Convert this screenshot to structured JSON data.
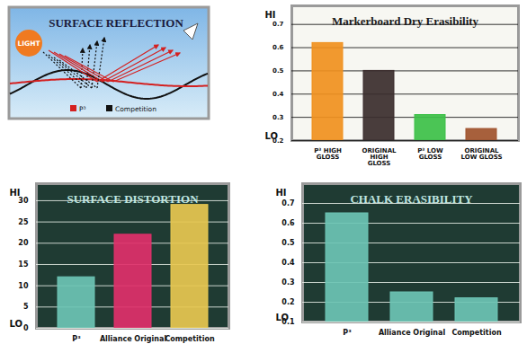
{
  "diagram": {
    "title": "SURFACE REFLECTION",
    "light": "LIGHT",
    "items": [
      {
        "name": "P³",
        "color": "#d42020"
      },
      {
        "name": "Competition",
        "color": "#111111"
      }
    ]
  },
  "chart_data": [
    {
      "type": "bar",
      "title": "Markerboard Dry Erasibility",
      "categories": [
        "P³ HIGH GLOSS",
        "ORIGINAL HIGH GLOSS",
        "P³ LOW GLOSS",
        "ORIGINAL LOW GLOSS"
      ],
      "values": [
        0.62,
        0.5,
        0.31,
        0.25
      ],
      "colors": [
        "#f0901e",
        "#3a2c2c",
        "#3cc048",
        "#a0522d"
      ],
      "ylim": [
        0.2,
        0.78
      ],
      "yticks": [
        0.2,
        0.3,
        0.4,
        0.5,
        0.6,
        0.7
      ],
      "grid": true,
      "annotations": [
        "HI",
        "LO"
      ]
    },
    {
      "type": "bar",
      "title": "SURFACE DISTORTION",
      "categories": [
        "P³",
        "Alliance Original",
        "Competition"
      ],
      "values": [
        12,
        22,
        29
      ],
      "colors": [
        "#6cc4b4",
        "#e0306a",
        "#e8c850"
      ],
      "ylim": [
        0,
        34
      ],
      "yticks": [
        0,
        5,
        10,
        15,
        20,
        25,
        30
      ],
      "grid": true,
      "annotations": [
        "HI",
        "LO"
      ]
    },
    {
      "type": "bar",
      "title": "CHALK ERASIBILITY",
      "categories": [
        "P³",
        "Alliance Original",
        "Competition"
      ],
      "values": [
        0.65,
        0.25,
        0.22
      ],
      "color": "#6cc4b4",
      "ylim": [
        0.1,
        0.8
      ],
      "yticks": [
        0.1,
        0.2,
        0.3,
        0.4,
        0.5,
        0.6,
        0.7
      ],
      "grid": true,
      "annotations": [
        "HI",
        "LO"
      ]
    }
  ]
}
